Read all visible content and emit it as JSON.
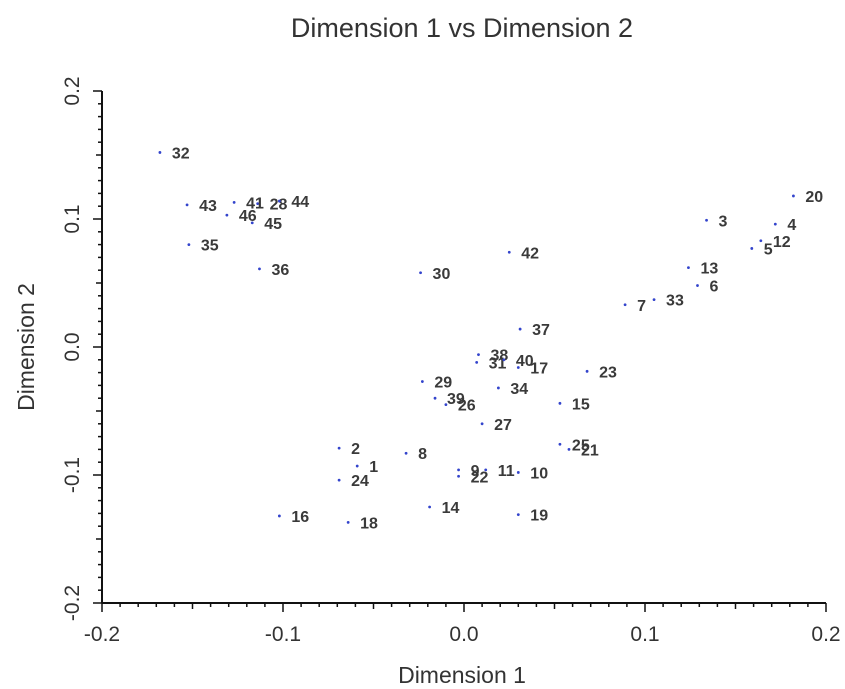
{
  "chart_data": {
    "type": "scatter",
    "title": "Dimension 1 vs Dimension 2",
    "xlabel": "Dimension 1",
    "ylabel": "Dimension 2",
    "xlim": [
      -0.2,
      0.2
    ],
    "ylim": [
      -0.2,
      0.2
    ],
    "xticks": [
      -0.2,
      -0.1,
      0.0,
      0.1,
      0.2
    ],
    "xtick_labels": [
      "-0.2",
      "-0.1",
      "0.0",
      "0.1",
      "0.2"
    ],
    "yticks": [
      -0.2,
      -0.1,
      0.0,
      0.1,
      0.2
    ],
    "ytick_labels": [
      "-0.2",
      "-0.1",
      "0.0",
      "0.1",
      "0.2"
    ],
    "grid": false,
    "points": [
      {
        "label": "1",
        "x": -0.059,
        "y": -0.093
      },
      {
        "label": "2",
        "x": -0.069,
        "y": -0.079
      },
      {
        "label": "3",
        "x": 0.134,
        "y": 0.099
      },
      {
        "label": "4",
        "x": 0.172,
        "y": 0.096
      },
      {
        "label": "5",
        "x": 0.159,
        "y": 0.077
      },
      {
        "label": "6",
        "x": 0.129,
        "y": 0.048
      },
      {
        "label": "7",
        "x": 0.089,
        "y": 0.033
      },
      {
        "label": "8",
        "x": -0.032,
        "y": -0.083
      },
      {
        "label": "9",
        "x": -0.003,
        "y": -0.096
      },
      {
        "label": "10",
        "x": 0.03,
        "y": -0.098
      },
      {
        "label": "11",
        "x": 0.012,
        "y": -0.096
      },
      {
        "label": "12",
        "x": 0.164,
        "y": 0.083
      },
      {
        "label": "13",
        "x": 0.124,
        "y": 0.062
      },
      {
        "label": "14",
        "x": -0.019,
        "y": -0.125
      },
      {
        "label": "15",
        "x": 0.053,
        "y": -0.044
      },
      {
        "label": "16",
        "x": -0.102,
        "y": -0.132
      },
      {
        "label": "17",
        "x": 0.03,
        "y": -0.016
      },
      {
        "label": "18",
        "x": -0.064,
        "y": -0.137
      },
      {
        "label": "19",
        "x": 0.03,
        "y": -0.131
      },
      {
        "label": "20",
        "x": 0.182,
        "y": 0.118
      },
      {
        "label": "21",
        "x": 0.058,
        "y": -0.08
      },
      {
        "label": "22",
        "x": -0.003,
        "y": -0.101
      },
      {
        "label": "23",
        "x": 0.068,
        "y": -0.019
      },
      {
        "label": "24",
        "x": -0.069,
        "y": -0.104
      },
      {
        "label": "25",
        "x": 0.053,
        "y": -0.076
      },
      {
        "label": "26",
        "x": -0.01,
        "y": -0.045
      },
      {
        "label": "27",
        "x": 0.01,
        "y": -0.06
      },
      {
        "label": "28",
        "x": -0.114,
        "y": 0.112
      },
      {
        "label": "29",
        "x": -0.023,
        "y": -0.027
      },
      {
        "label": "30",
        "x": -0.024,
        "y": 0.058
      },
      {
        "label": "31",
        "x": 0.007,
        "y": -0.012
      },
      {
        "label": "32",
        "x": -0.168,
        "y": 0.152
      },
      {
        "label": "33",
        "x": 0.105,
        "y": 0.037
      },
      {
        "label": "34",
        "x": 0.019,
        "y": -0.032
      },
      {
        "label": "35",
        "x": -0.152,
        "y": 0.08
      },
      {
        "label": "36",
        "x": -0.113,
        "y": 0.061
      },
      {
        "label": "37",
        "x": 0.031,
        "y": 0.014
      },
      {
        "label": "38",
        "x": 0.008,
        "y": -0.006
      },
      {
        "label": "39",
        "x": -0.016,
        "y": -0.04
      },
      {
        "label": "40",
        "x": 0.022,
        "y": -0.01
      },
      {
        "label": "41",
        "x": -0.127,
        "y": 0.113
      },
      {
        "label": "42",
        "x": 0.025,
        "y": 0.074
      },
      {
        "label": "43",
        "x": -0.153,
        "y": 0.111
      },
      {
        "label": "44",
        "x": -0.102,
        "y": 0.114
      },
      {
        "label": "45",
        "x": -0.117,
        "y": 0.097
      },
      {
        "label": "46",
        "x": -0.131,
        "y": 0.103
      }
    ],
    "point_color": "#3344cc"
  }
}
